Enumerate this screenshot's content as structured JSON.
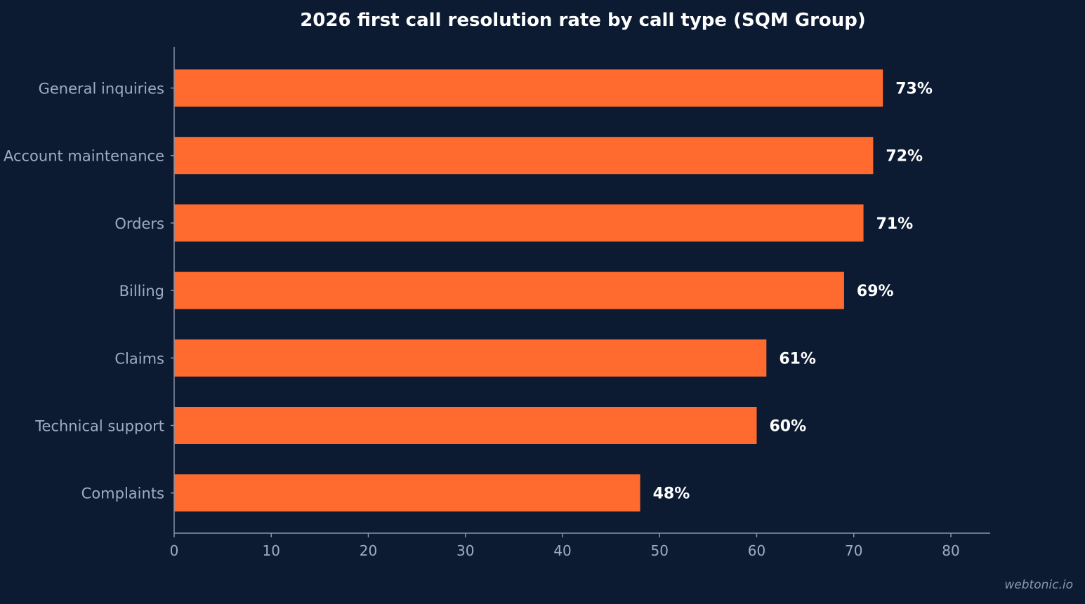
{
  "chart_data": {
    "type": "bar",
    "orientation": "horizontal",
    "title": "2026 first call resolution rate by call type (SQM Group)",
    "categories": [
      "General inquiries",
      "Account maintenance",
      "Orders",
      "Billing",
      "Claims",
      "Technical support",
      "Complaints"
    ],
    "values": [
      73,
      72,
      71,
      69,
      61,
      60,
      48
    ],
    "value_labels": [
      "73%",
      "72%",
      "71%",
      "69%",
      "61%",
      "60%",
      "48%"
    ],
    "xlim": [
      0,
      84
    ],
    "xticks": [
      0,
      10,
      20,
      30,
      40,
      50,
      60,
      70,
      80
    ],
    "xtick_labels": [
      "0",
      "10",
      "20",
      "30",
      "40",
      "50",
      "60",
      "70",
      "80"
    ],
    "xlabel": "",
    "ylabel": "",
    "grid": false,
    "legend": "none"
  },
  "colors": {
    "background": "#0c1a32",
    "bar": "#ff6b2e",
    "axis": "#8692a8",
    "title": "#ffffff",
    "label": "#9fadc4",
    "value_label": "#ffffff"
  },
  "watermark": "webtonic.io"
}
